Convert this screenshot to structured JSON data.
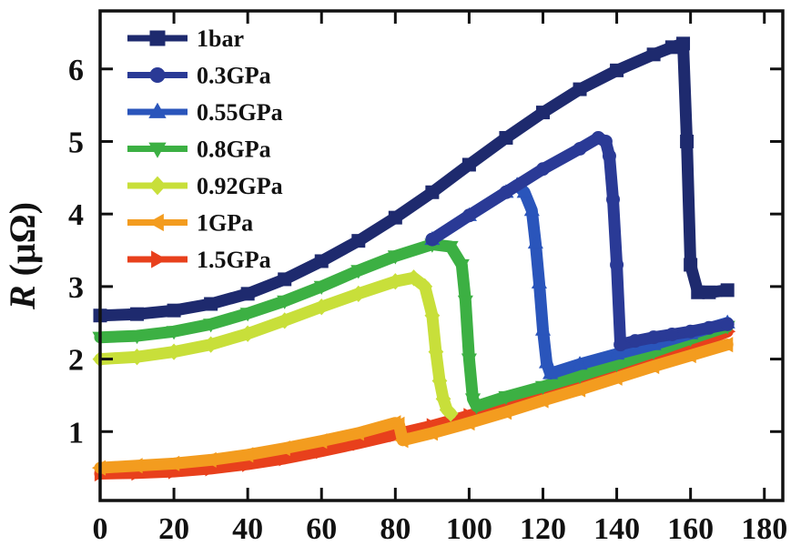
{
  "chart_data": {
    "type": "line",
    "title": "",
    "xlabel": "",
    "ylabel": "R (μΩ)",
    "ylabel_italic_part": "R",
    "ylabel_unit_part": " (μΩ)",
    "xlim": [
      0,
      185
    ],
    "ylim": [
      0.05,
      6.8
    ],
    "x_ticks": [
      0,
      20,
      40,
      60,
      80,
      100,
      120,
      140,
      160,
      180
    ],
    "y_ticks": [
      1,
      2,
      3,
      4,
      5,
      6
    ],
    "grid": false,
    "legend_position": "top-left",
    "series": [
      {
        "name": "1bar",
        "color": "#1e2a6e",
        "marker": "square",
        "x": [
          0,
          10,
          20,
          30,
          40,
          50,
          60,
          70,
          80,
          90,
          100,
          110,
          120,
          130,
          140,
          150,
          155,
          158,
          159,
          160,
          162,
          165,
          170
        ],
        "y": [
          2.6,
          2.62,
          2.67,
          2.76,
          2.9,
          3.1,
          3.35,
          3.63,
          3.95,
          4.3,
          4.68,
          5.05,
          5.4,
          5.72,
          5.98,
          6.2,
          6.3,
          6.35,
          5.0,
          3.3,
          2.92,
          2.92,
          2.95
        ]
      },
      {
        "name": "0.3GPa",
        "color": "#2a3a96",
        "marker": "circle",
        "x": [
          90,
          100,
          110,
          120,
          130,
          135,
          137,
          138,
          139,
          140,
          141,
          145,
          150,
          155,
          160,
          165,
          170
        ],
        "y": [
          3.65,
          3.98,
          4.3,
          4.62,
          4.9,
          5.05,
          5.0,
          4.8,
          4.2,
          3.3,
          2.2,
          2.25,
          2.3,
          2.34,
          2.38,
          2.43,
          2.48
        ]
      },
      {
        "name": "0.55GPa",
        "color": "#2a55bb",
        "marker": "triangle-up",
        "x": [
          90,
          100,
          110,
          113,
          115,
          117,
          118,
          119,
          120,
          121,
          122,
          130,
          140,
          150,
          160,
          170
        ],
        "y": [
          3.65,
          3.98,
          4.3,
          4.4,
          4.3,
          4.05,
          3.6,
          3.05,
          2.4,
          1.95,
          1.8,
          1.93,
          2.07,
          2.2,
          2.35,
          2.5
        ]
      },
      {
        "name": "0.8GPa",
        "color": "#3cb043",
        "marker": "triangle-down",
        "x": [
          0,
          10,
          20,
          30,
          40,
          50,
          60,
          70,
          80,
          90,
          95,
          98,
          99,
          100,
          101,
          102,
          110,
          120,
          130,
          140,
          150,
          160,
          170
        ],
        "y": [
          2.3,
          2.32,
          2.38,
          2.48,
          2.63,
          2.8,
          3.0,
          3.22,
          3.42,
          3.58,
          3.55,
          3.3,
          2.8,
          2.0,
          1.45,
          1.35,
          1.48,
          1.62,
          1.77,
          1.93,
          2.1,
          2.28,
          2.45
        ]
      },
      {
        "name": "0.92GPa",
        "color": "#c8df3a",
        "marker": "diamond",
        "x": [
          0,
          10,
          20,
          30,
          40,
          50,
          60,
          70,
          80,
          85,
          88,
          90,
          91,
          92,
          93,
          94,
          95
        ],
        "y": [
          2.0,
          2.03,
          2.1,
          2.2,
          2.35,
          2.53,
          2.72,
          2.9,
          3.07,
          3.12,
          3.0,
          2.6,
          2.1,
          1.7,
          1.45,
          1.3,
          1.25
        ]
      },
      {
        "name": "1GPa",
        "color": "#f39c1f",
        "marker": "triangle-left",
        "x": [
          0,
          10,
          20,
          30,
          40,
          50,
          60,
          70,
          80,
          81,
          82,
          90,
          100,
          110,
          120,
          130,
          140,
          150,
          160,
          170
        ],
        "y": [
          0.5,
          0.53,
          0.56,
          0.61,
          0.68,
          0.77,
          0.87,
          0.98,
          1.12,
          1.1,
          0.88,
          0.98,
          1.12,
          1.27,
          1.43,
          1.58,
          1.74,
          1.9,
          2.05,
          2.2
        ]
      },
      {
        "name": "1.5GPa",
        "color": "#e8401c",
        "marker": "triangle-right",
        "x": [
          0,
          10,
          20,
          30,
          40,
          50,
          60,
          70,
          80,
          90,
          100,
          110,
          120,
          130,
          140,
          150,
          160,
          170
        ],
        "y": [
          0.42,
          0.43,
          0.45,
          0.49,
          0.55,
          0.63,
          0.73,
          0.84,
          0.96,
          1.08,
          1.22,
          1.37,
          1.53,
          1.7,
          1.87,
          2.03,
          2.18,
          2.38
        ]
      }
    ]
  }
}
